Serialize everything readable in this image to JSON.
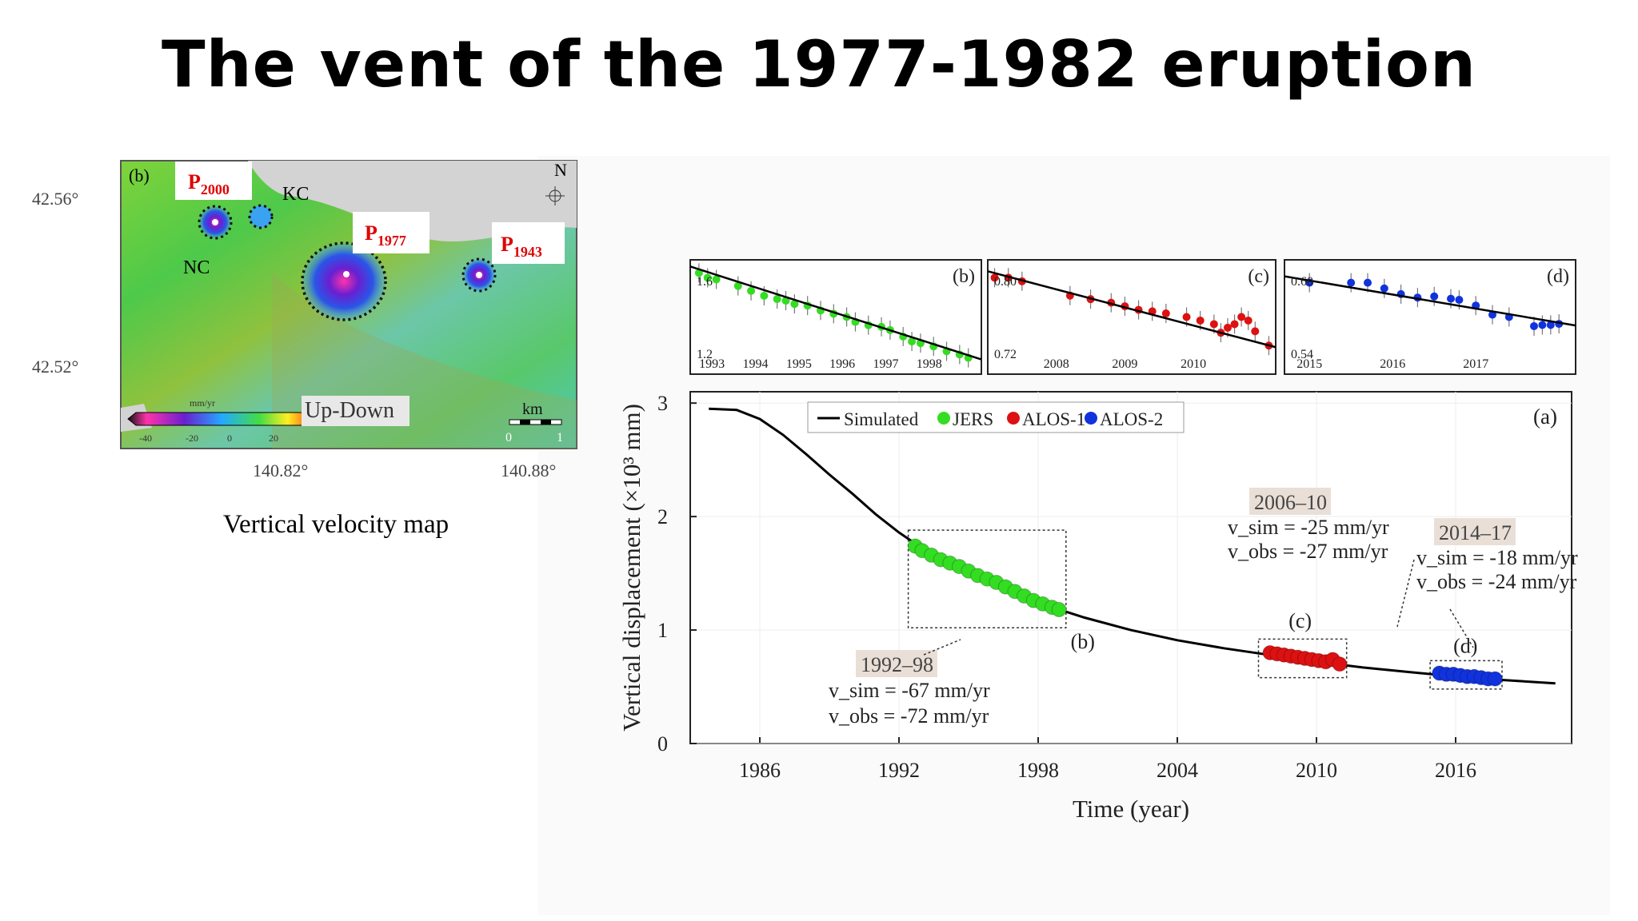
{
  "slide": {
    "title": "The vent of the 1977-1982 eruption"
  },
  "map": {
    "panel_label": "(b)",
    "north_label": "N",
    "lat_ticks": [
      "42.56°",
      "42.52°"
    ],
    "lon_ticks": [
      "140.82°",
      "140.88°"
    ],
    "vent_labels": [
      {
        "main": "P",
        "sub": "2000"
      },
      {
        "main": "P",
        "sub": "1977"
      },
      {
        "main": "P",
        "sub": "1943"
      }
    ],
    "place_labels": [
      "KC",
      "NC"
    ],
    "colorbar_unit": "mm/yr",
    "colorbar_ticks": [
      "-40",
      "-20",
      "0",
      "20"
    ],
    "component_label": "Up-Down",
    "scale_unit": "km",
    "scale_ticks": [
      "0",
      "1"
    ],
    "caption": "Vertical velocity map",
    "colors": {
      "vent_label": "#e00000",
      "sea": "#d3d3d3"
    }
  },
  "chart_data": [
    {
      "type": "scatter",
      "panel": "(a)",
      "xlabel": "Time (year)",
      "ylabel": "Vertical displacement (×10³ mm)",
      "xlim": [
        1983,
        2021
      ],
      "ylim": [
        0,
        3.1
      ],
      "xticks": [
        1986,
        1992,
        1998,
        2004,
        2010,
        2016
      ],
      "yticks": [
        0,
        1,
        2,
        3
      ],
      "legend": {
        "placement": "top-left",
        "entries": [
          "Simulated",
          "JERS",
          "ALOS-1",
          "ALOS-2"
        ]
      },
      "simulated": {
        "name": "Simulated",
        "color": "#000000",
        "x": [
          1983.8,
          1985,
          1986,
          1987,
          1988,
          1989,
          1990,
          1991,
          1992,
          1993,
          1994,
          1996,
          1998,
          2000,
          2002,
          2004,
          2006,
          2008,
          2010,
          2012,
          2014,
          2016,
          2018,
          2020.3
        ],
        "y": [
          2.95,
          2.94,
          2.86,
          2.72,
          2.55,
          2.37,
          2.2,
          2.02,
          1.86,
          1.72,
          1.6,
          1.4,
          1.24,
          1.11,
          1.0,
          0.91,
          0.84,
          0.78,
          0.72,
          0.67,
          0.63,
          0.59,
          0.56,
          0.53
        ]
      },
      "series": [
        {
          "name": "JERS",
          "color": "#33dd22",
          "x": [
            1992.7,
            1993.0,
            1993.4,
            1993.8,
            1994.2,
            1994.6,
            1995.0,
            1995.4,
            1995.8,
            1996.2,
            1996.6,
            1997.0,
            1997.4,
            1997.8,
            1998.2,
            1998.6,
            1998.9
          ],
          "y": [
            1.74,
            1.7,
            1.66,
            1.62,
            1.59,
            1.56,
            1.52,
            1.48,
            1.45,
            1.42,
            1.38,
            1.34,
            1.3,
            1.26,
            1.23,
            1.2,
            1.18
          ]
        },
        {
          "name": "ALOS-1",
          "color": "#dd1111",
          "x": [
            2008.0,
            2008.3,
            2008.6,
            2008.9,
            2009.2,
            2009.5,
            2009.8,
            2010.1,
            2010.4,
            2010.7,
            2011.0
          ],
          "y": [
            0.8,
            0.79,
            0.78,
            0.77,
            0.76,
            0.75,
            0.74,
            0.73,
            0.72,
            0.74,
            0.7
          ]
        },
        {
          "name": "ALOS-2",
          "color": "#1133dd",
          "x": [
            2015.3,
            2015.6,
            2015.9,
            2016.2,
            2016.5,
            2016.8,
            2017.1,
            2017.4,
            2017.7
          ],
          "y": [
            0.62,
            0.61,
            0.61,
            0.6,
            0.59,
            0.59,
            0.58,
            0.57,
            0.57
          ]
        }
      ],
      "annotations": [
        {
          "box": "(b)",
          "period": "1992–98",
          "v_sim": "v_sim = -67 mm/yr",
          "v_obs": "v_obs = -72 mm/yr",
          "box_x": [
            1992.4,
            1999.2
          ],
          "box_y": [
            1.02,
            1.88
          ]
        },
        {
          "box": "(c)",
          "period": "2006–10",
          "v_sim": "v_sim = -25 mm/yr",
          "v_obs": "v_obs = -27 mm/yr",
          "box_x": [
            2007.5,
            2011.3
          ],
          "box_y": [
            0.58,
            0.92
          ]
        },
        {
          "box": "(d)",
          "period": "2014–17",
          "v_sim": "v_sim = -18 mm/yr",
          "v_obs": "v_obs = -24 mm/yr",
          "box_x": [
            2014.9,
            2018.0
          ],
          "box_y": [
            0.48,
            0.73
          ]
        }
      ]
    },
    {
      "type": "scatter",
      "panel": "(b)",
      "xticks": [
        "1993",
        "1994",
        "1995",
        "1996",
        "1997",
        "1998"
      ],
      "yticks": [
        "1.6",
        "1.2"
      ],
      "xlim": [
        1992.5,
        1999.2
      ],
      "ylim": [
        1.1,
        1.8
      ],
      "series": [
        {
          "name": "JERS",
          "color": "#33dd22",
          "x": [
            1992.7,
            1992.9,
            1993.1,
            1993.6,
            1993.9,
            1994.2,
            1994.5,
            1994.7,
            1994.9,
            1995.2,
            1995.5,
            1995.8,
            1996.1,
            1996.3,
            1996.6,
            1996.9,
            1997.1,
            1997.4,
            1997.6,
            1997.8,
            1998.1,
            1998.4,
            1998.7,
            1998.9
          ],
          "y": [
            1.72,
            1.69,
            1.68,
            1.64,
            1.61,
            1.58,
            1.56,
            1.55,
            1.53,
            1.52,
            1.49,
            1.47,
            1.45,
            1.42,
            1.4,
            1.39,
            1.37,
            1.33,
            1.3,
            1.29,
            1.27,
            1.24,
            1.22,
            1.2
          ]
        }
      ]
    },
    {
      "type": "scatter",
      "panel": "(c)",
      "xticks": [
        "2008",
        "2009",
        "2010"
      ],
      "yticks": [
        "0.80",
        "0.72"
      ],
      "xlim": [
        2007.0,
        2011.2
      ],
      "ylim": [
        0.67,
        0.83
      ],
      "series": [
        {
          "name": "ALOS-1",
          "color": "#dd1111",
          "x": [
            2007.1,
            2007.3,
            2007.5,
            2008.2,
            2008.5,
            2008.8,
            2009.0,
            2009.2,
            2009.4,
            2009.6,
            2009.9,
            2010.1,
            2010.3,
            2010.4,
            2010.5,
            2010.6,
            2010.7,
            2010.8,
            2010.9,
            2011.1
          ],
          "y": [
            0.805,
            0.805,
            0.8,
            0.78,
            0.775,
            0.77,
            0.765,
            0.76,
            0.758,
            0.755,
            0.75,
            0.745,
            0.74,
            0.728,
            0.735,
            0.74,
            0.75,
            0.745,
            0.73,
            0.71
          ]
        }
      ]
    },
    {
      "type": "scatter",
      "panel": "(d)",
      "xticks": [
        "2015",
        "2016",
        "2017"
      ],
      "yticks": [
        "0.60",
        "0.54"
      ],
      "xlim": [
        2014.7,
        2018.2
      ],
      "ylim": [
        0.52,
        0.62
      ],
      "series": [
        {
          "name": "ALOS-2",
          "color": "#1133dd",
          "x": [
            2015.0,
            2015.5,
            2015.7,
            2015.9,
            2016.1,
            2016.3,
            2016.5,
            2016.7,
            2016.8,
            2017.0,
            2017.2,
            2017.4,
            2017.7,
            2017.8,
            2017.9,
            2018.0
          ],
          "y": [
            0.6,
            0.6,
            0.6,
            0.595,
            0.59,
            0.587,
            0.588,
            0.586,
            0.585,
            0.58,
            0.572,
            0.57,
            0.562,
            0.563,
            0.563,
            0.564
          ]
        }
      ]
    }
  ]
}
